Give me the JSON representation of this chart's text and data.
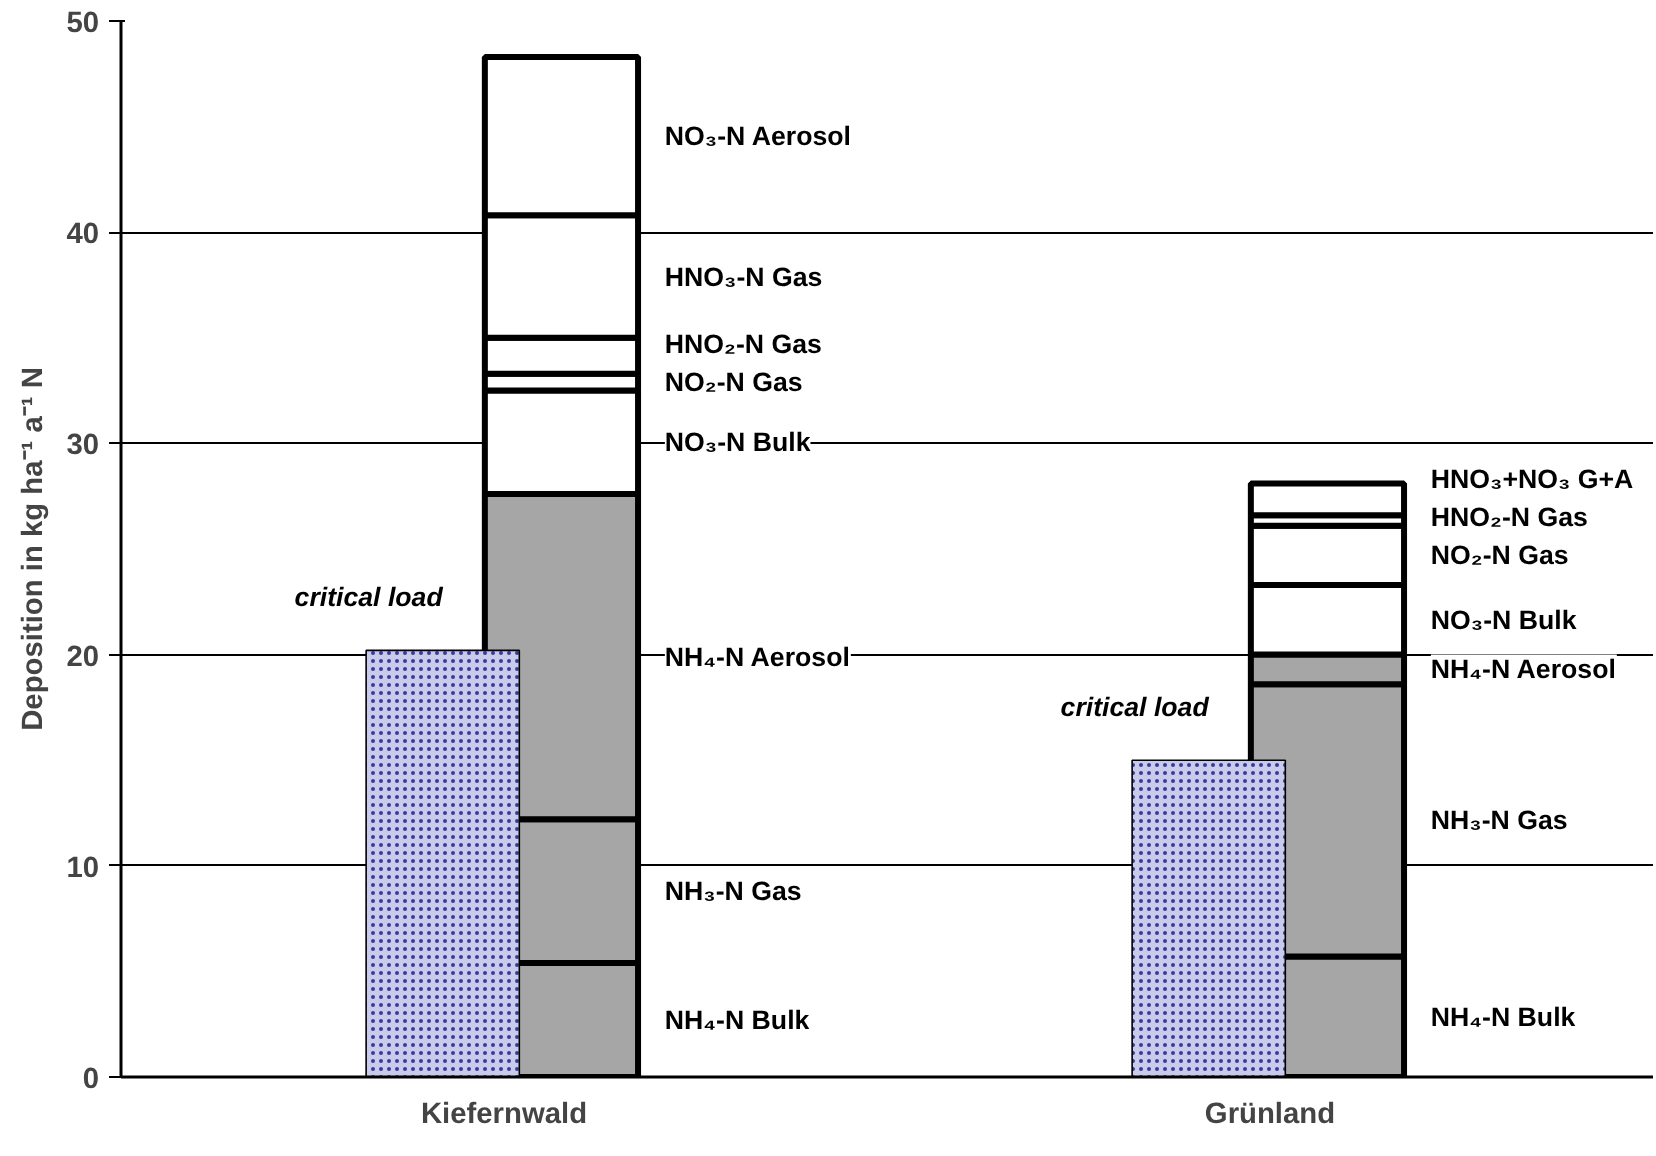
{
  "chart_data": [
    {
      "type": "bar",
      "stacked": true,
      "ylabel": "Deposition in kg ha⁻¹ a⁻¹ N",
      "categories": [
        "Kiefernwald",
        "Grünland"
      ],
      "ylim": [
        0,
        50
      ],
      "yticks": [
        0,
        10,
        20,
        30,
        40,
        50
      ],
      "grid": "y",
      "series": [
        {
          "name": "NH₄-N Bulk",
          "color": "#a6a6a6",
          "values": [
            5.4,
            5.7
          ]
        },
        {
          "name": "NH₃-N Gas",
          "color": "#a6a6a6",
          "values": [
            6.8,
            12.9
          ]
        },
        {
          "name": "NH₄-N Aerosol",
          "color": "#a6a6a6",
          "values": [
            15.4,
            1.4
          ]
        },
        {
          "name": "NO₃-N Bulk",
          "color": "#ffffff",
          "values": [
            4.9,
            3.3
          ]
        },
        {
          "name": "NO₂-N Gas",
          "color": "#ffffff",
          "values": [
            0.8,
            2.8
          ]
        },
        {
          "name": "HNO₂-N Gas",
          "color": "#ffffff",
          "values": [
            1.7,
            0.5
          ]
        },
        {
          "name": "HNO₃-N Gas",
          "color": "#ffffff",
          "values": [
            5.8,
            null
          ]
        },
        {
          "name": "NO₃-N Aerosol",
          "color": "#ffffff",
          "values": [
            7.5,
            null
          ]
        },
        {
          "name": "HNO₃+NO₃ G+A",
          "color": "#ffffff",
          "values": [
            null,
            1.5
          ]
        }
      ]
    },
    {
      "type": "bar",
      "ylim": [
        0,
        50
      ],
      "series": [
        {
          "name": "critical load",
          "color": "#c8cbea",
          "values": [
            20.2,
            15.0
          ]
        }
      ]
    }
  ]
}
